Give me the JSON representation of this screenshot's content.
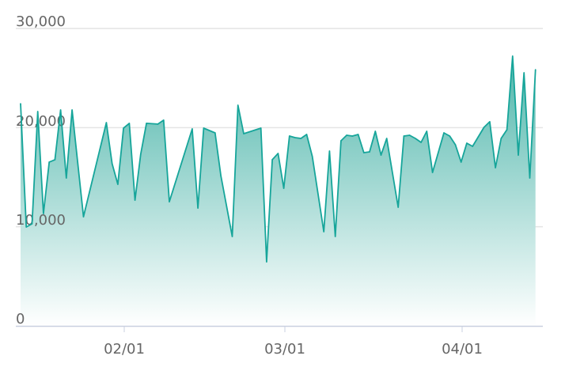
{
  "chart_data": {
    "type": "area",
    "title": "",
    "xlabel": "",
    "ylabel": "",
    "ylim": [
      0,
      30000
    ],
    "y_ticks": [
      "0",
      "10,000",
      "20,000",
      "30,000"
    ],
    "y_tick_values": [
      0,
      10000,
      20000,
      30000
    ],
    "x_ticks": [
      "02/01",
      "03/01",
      "04/01"
    ],
    "grid": true,
    "colors": {
      "line": "#16a59a",
      "fill_top": "#4fb6ab",
      "fill_bottom": "#ffffff"
    },
    "x": [
      "01/14",
      "01/15",
      "01/16",
      "01/17",
      "01/18",
      "01/19",
      "01/20",
      "01/21",
      "01/22",
      "01/23",
      "01/25",
      "01/29",
      "01/30",
      "01/31",
      "02/01",
      "02/02",
      "02/03",
      "02/04",
      "02/05",
      "02/07",
      "02/08",
      "02/09",
      "02/13",
      "02/14",
      "02/15",
      "02/17",
      "02/18",
      "02/20",
      "02/21",
      "02/22",
      "02/25",
      "02/26",
      "02/27",
      "02/28",
      "03/01",
      "03/02",
      "03/03",
      "03/04",
      "03/05",
      "03/06",
      "03/08",
      "03/09",
      "03/10",
      "03/11",
      "03/12",
      "03/13",
      "03/14",
      "03/15",
      "03/16",
      "03/17",
      "03/18",
      "03/19",
      "03/21",
      "03/22",
      "03/23",
      "03/24",
      "03/25",
      "03/26",
      "03/27",
      "03/29",
      "03/30",
      "03/31",
      "04/01",
      "04/02",
      "04/03",
      "04/04",
      "04/05",
      "04/06",
      "04/07",
      "04/08",
      "04/09",
      "04/10",
      "04/11",
      "04/12",
      "04/13",
      "04/14"
    ],
    "values": [
      22420,
      9970,
      10290,
      21620,
      11330,
      16520,
      16760,
      21780,
      14920,
      21780,
      11010,
      20500,
      16360,
      14280,
      19950,
      20430,
      12690,
      17310,
      20430,
      20350,
      20750,
      12530,
      19870,
      11890,
      19950,
      19470,
      15160,
      9020,
      22260,
      19390,
      19950,
      6460,
      16760,
      17390,
      13880,
      19150,
      18990,
      18910,
      19310,
      17080,
      9500,
      17630,
      9020,
      18670,
      19230,
      19150,
      19310,
      17470,
      17550,
      19630,
      17230,
      18910,
      11970,
      19150,
      19230,
      18910,
      18510,
      19630,
      15480,
      19470,
      19150,
      18270,
      16520,
      18430,
      18110,
      19070,
      20030,
      20590,
      15960,
      18910,
      19790,
      27210,
      17230,
      25530,
      14920,
      25850
    ]
  }
}
